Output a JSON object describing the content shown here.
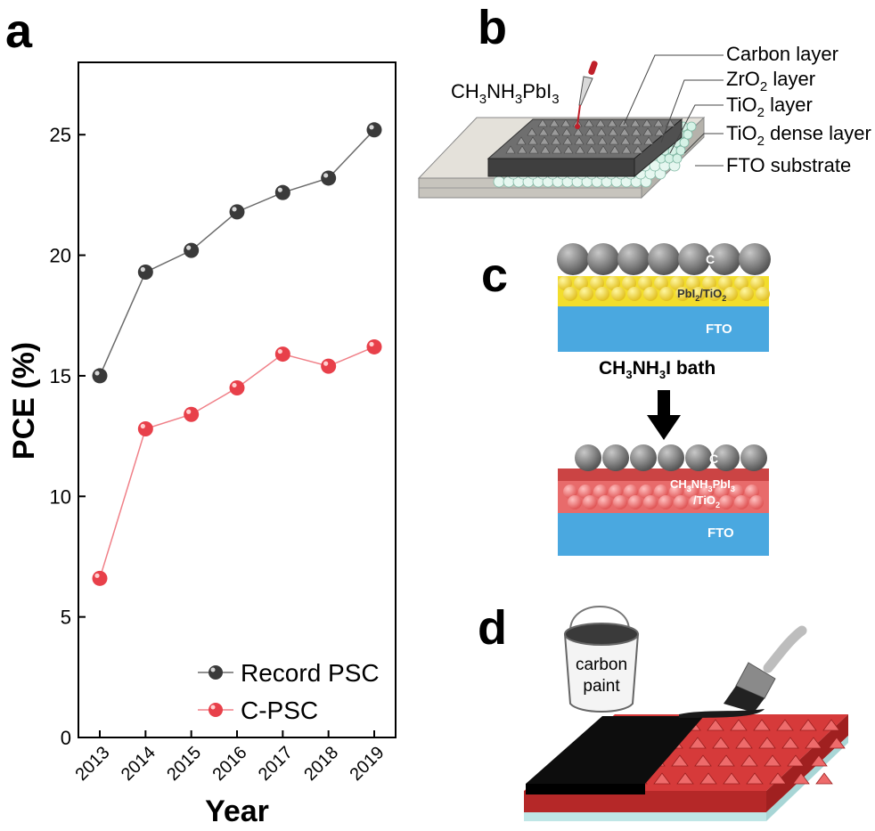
{
  "panels": {
    "a": {
      "letter": "a",
      "chart_data": {
        "type": "line",
        "x": [
          "2013",
          "2014",
          "2015",
          "2016",
          "2017",
          "2018",
          "2019"
        ],
        "series": [
          {
            "name": "Record PSC",
            "values": [
              15.0,
              19.3,
              20.2,
              21.8,
              22.6,
              23.2,
              25.2
            ],
            "color": "#3a3a3a",
            "line_color": "#6b6b6b"
          },
          {
            "name": "C-PSC",
            "values": [
              6.6,
              12.8,
              13.4,
              14.5,
              15.9,
              15.4,
              16.2
            ],
            "color": "#e8404a",
            "line_color": "#f08088"
          }
        ],
        "xlabel": "Year",
        "ylabel": "PCE (%)",
        "ylim": [
          0,
          28
        ],
        "yticks": [
          0,
          5,
          10,
          15,
          20,
          25
        ],
        "grid": false,
        "legend": "bottom-right"
      }
    },
    "b": {
      "letter": "b",
      "precursor": {
        "base": "CH",
        "sub1": "3",
        "mid1": "NH",
        "sub2": "3",
        "mid2": "PbI",
        "sub3": "3"
      },
      "layers": {
        "carbon": "Carbon layer",
        "zro2": {
          "base": "ZrO",
          "sub": "2",
          "rest": " layer"
        },
        "tio2": {
          "base": "TiO",
          "sub": "2",
          "rest": " layer"
        },
        "tio2_dense": {
          "base": "TiO",
          "sub": "2",
          "rest": " dense layer"
        },
        "fto": "FTO substrate"
      }
    },
    "c": {
      "letter": "c",
      "top": {
        "c": "C",
        "mid": {
          "base": "PbI",
          "sub": "2",
          "rest": "/TiO",
          "sub2": "2"
        },
        "fto": "FTO"
      },
      "bath": {
        "base": "CH",
        "sub1": "3",
        "mid": "NH",
        "sub2": "3",
        "rest": "I bath"
      },
      "bottom": {
        "c": "C",
        "mid_line1": {
          "base": "CH",
          "sub1": "3",
          "mid": "NH",
          "sub2": "3",
          "rest": "PbI",
          "sub3": "3"
        },
        "mid_line2": {
          "base": "/TiO",
          "sub": "2"
        },
        "fto": "FTO"
      }
    },
    "d": {
      "letter": "d",
      "bucket": {
        "line1": "carbon",
        "line2": "paint"
      }
    }
  },
  "colors": {
    "fto_blue": "#4aa8e0",
    "pbi2_yellow": "#f2dd2c",
    "perov_red": "#e86b6b",
    "carbon_grey": "#777777"
  }
}
